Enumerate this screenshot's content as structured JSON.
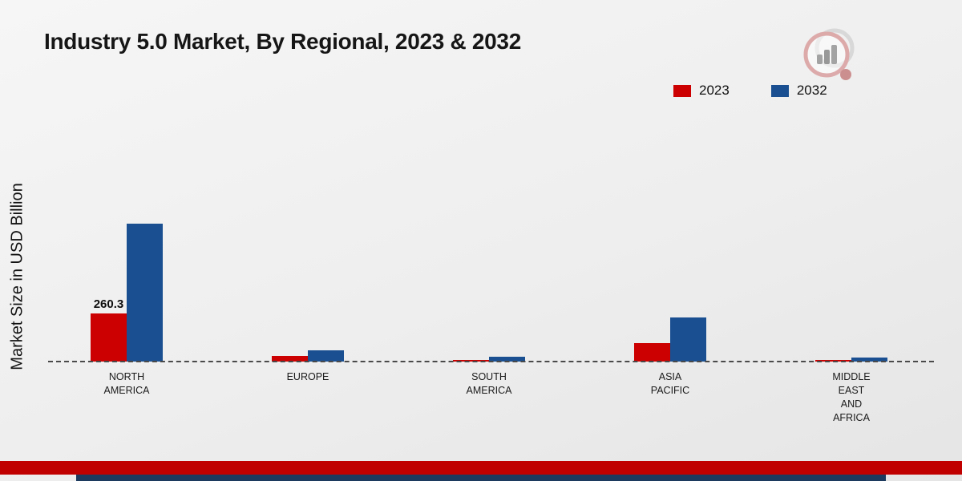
{
  "page": {
    "title": "Industry 5.0 Market, By Regional, 2023 & 2032",
    "ylabel": "Market Size in USD Billion"
  },
  "legend": {
    "items": [
      {
        "label": "2023",
        "color": "#cc0000"
      },
      {
        "label": "2032",
        "color": "#1a5091"
      }
    ]
  },
  "footer": {
    "red_bar_color": "#c00000",
    "navy_bar_color": "#1b3a5e"
  },
  "chart_data": {
    "type": "bar",
    "title": "Industry 5.0 Market, By Regional, 2023 & 2032",
    "ylabel": "Market Size in USD Billion",
    "categories": [
      "NORTH AMERICA",
      "EUROPE",
      "SOUTH AMERICA",
      "ASIA PACIFIC",
      "MIDDLE EAST AND AFRICA"
    ],
    "series": [
      {
        "name": "2023",
        "color": "#cc0000",
        "values": [
          260.3,
          32,
          9,
          100,
          7
        ]
      },
      {
        "name": "2032",
        "color": "#1a5091",
        "values": [
          745,
          60,
          26,
          238,
          20
        ]
      }
    ],
    "data_labels": [
      {
        "series": "2023",
        "category": "NORTH AMERICA",
        "text": "260.3"
      }
    ],
    "ylim": [
      0,
      800
    ],
    "legend_position": "top-right",
    "grid": false,
    "baseline_style": "dashed"
  }
}
